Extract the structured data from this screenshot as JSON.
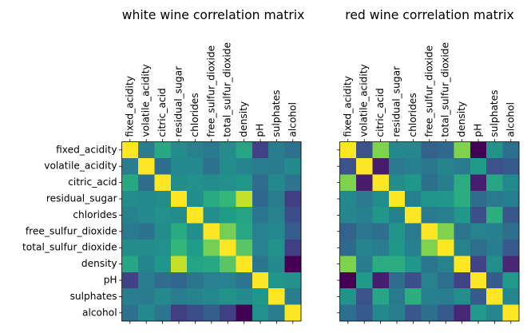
{
  "chart_data": [
    {
      "type": "heatmap",
      "title": "white wine correlation matrix",
      "colormap": "viridis",
      "vmin": -0.78,
      "vmax": 1.0,
      "labels": [
        "fixed_acidity",
        "volatile_acidity",
        "citric_acid",
        "residual_sugar",
        "chlorides",
        "free_sulfur_dioxide",
        "total_sulfur_dioxide",
        "density",
        "pH",
        "sulphates",
        "alcohol"
      ],
      "ytick_labels_visible": true,
      "matrix": [
        [
          1.0,
          -0.02,
          0.29,
          0.09,
          0.02,
          -0.05,
          0.09,
          0.27,
          -0.43,
          -0.02,
          -0.12
        ],
        [
          -0.02,
          1.0,
          -0.15,
          0.06,
          0.07,
          -0.1,
          0.09,
          0.03,
          -0.03,
          -0.04,
          0.07
        ],
        [
          0.29,
          -0.15,
          1.0,
          0.09,
          0.11,
          0.09,
          0.12,
          0.15,
          -0.16,
          0.06,
          -0.08
        ],
        [
          0.09,
          0.06,
          0.09,
          1.0,
          0.09,
          0.3,
          0.4,
          0.84,
          -0.19,
          -0.03,
          -0.45
        ],
        [
          0.02,
          0.07,
          0.11,
          0.09,
          1.0,
          0.1,
          0.2,
          0.26,
          -0.09,
          0.02,
          -0.36
        ],
        [
          -0.05,
          -0.1,
          0.09,
          0.3,
          0.1,
          1.0,
          0.62,
          0.29,
          0.0,
          0.06,
          -0.25
        ],
        [
          0.09,
          0.09,
          0.12,
          0.4,
          0.2,
          0.62,
          1.0,
          0.53,
          0.0,
          0.13,
          -0.45
        ],
        [
          0.27,
          0.03,
          0.15,
          0.84,
          0.26,
          0.29,
          0.53,
          1.0,
          -0.09,
          0.07,
          -0.78
        ],
        [
          -0.43,
          -0.03,
          -0.16,
          -0.19,
          -0.09,
          0.0,
          0.0,
          -0.09,
          1.0,
          0.16,
          0.12
        ],
        [
          -0.02,
          -0.04,
          0.06,
          -0.03,
          0.02,
          0.06,
          0.13,
          0.07,
          0.16,
          1.0,
          -0.02
        ],
        [
          -0.12,
          0.07,
          -0.08,
          -0.45,
          -0.36,
          -0.25,
          -0.45,
          -0.78,
          0.12,
          -0.02,
          1.0
        ]
      ]
    },
    {
      "type": "heatmap",
      "title": "red wine correlation matrix",
      "colormap": "viridis",
      "vmin": -0.68,
      "vmax": 1.0,
      "labels": [
        "fixed_acidity",
        "volatile_acidity",
        "citric_acid",
        "residual_sugar",
        "chlorides",
        "free_sulfur_dioxide",
        "total_sulfur_dioxide",
        "density",
        "pH",
        "sulphates",
        "alcohol"
      ],
      "ytick_labels_visible": false,
      "matrix": [
        [
          1.0,
          -0.26,
          0.67,
          0.11,
          0.09,
          -0.15,
          -0.11,
          0.67,
          -0.68,
          0.18,
          -0.06
        ],
        [
          -0.26,
          1.0,
          -0.55,
          0.0,
          0.06,
          -0.01,
          0.08,
          0.02,
          0.23,
          -0.26,
          -0.2
        ],
        [
          0.67,
          -0.55,
          1.0,
          0.14,
          0.2,
          -0.06,
          0.04,
          0.36,
          -0.54,
          0.31,
          0.11
        ],
        [
          0.11,
          0.0,
          0.14,
          1.0,
          0.06,
          0.19,
          0.2,
          0.36,
          -0.09,
          0.01,
          0.04
        ],
        [
          0.09,
          0.06,
          0.2,
          0.06,
          1.0,
          0.01,
          0.05,
          0.2,
          -0.27,
          0.37,
          -0.22
        ],
        [
          -0.15,
          -0.01,
          -0.06,
          0.19,
          0.01,
          1.0,
          0.67,
          -0.02,
          0.07,
          0.05,
          -0.07
        ],
        [
          -0.11,
          0.08,
          0.04,
          0.2,
          0.05,
          0.67,
          1.0,
          0.07,
          -0.07,
          0.04,
          -0.21
        ],
        [
          0.67,
          0.02,
          0.36,
          0.36,
          0.2,
          -0.02,
          0.07,
          1.0,
          -0.34,
          0.15,
          -0.5
        ],
        [
          -0.68,
          0.23,
          -0.54,
          -0.09,
          -0.27,
          0.07,
          -0.07,
          -0.34,
          1.0,
          -0.2,
          0.21
        ],
        [
          0.18,
          -0.26,
          0.31,
          0.01,
          0.37,
          0.05,
          0.04,
          0.15,
          -0.2,
          1.0,
          0.09
        ],
        [
          -0.06,
          -0.2,
          0.11,
          0.04,
          -0.22,
          -0.07,
          -0.21,
          -0.5,
          0.21,
          0.09,
          1.0
        ]
      ]
    }
  ]
}
